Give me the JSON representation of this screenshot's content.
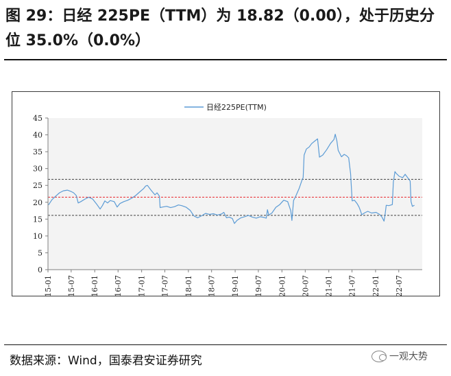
{
  "figure": {
    "title": "图 29：日经 225PE（TTM）为 18.82（0.00），处于历史分位 35.0%（0.0%）",
    "source": "数据来源：Wind，国泰君安证券研究",
    "watermark": "一观大势"
  },
  "colors": {
    "series": "#5b9bd5",
    "mean_line": "#e8242a",
    "band_line": "#404040"
  },
  "chart_data": {
    "type": "line",
    "title": "",
    "xlabel": "",
    "ylabel": "",
    "ylim": [
      0,
      45
    ],
    "yticks": [
      0,
      5,
      10,
      15,
      20,
      25,
      30,
      35,
      40,
      45
    ],
    "xlim": [
      "2015-01",
      "2022-12"
    ],
    "xticks": [
      "15-01",
      "15-07",
      "16-01",
      "16-07",
      "17-01",
      "17-07",
      "18-01",
      "18-07",
      "19-01",
      "19-07",
      "20-01",
      "20-07",
      "21-01",
      "21-07",
      "22-01",
      "22-07"
    ],
    "grid": false,
    "legend": {
      "position": "top-center",
      "entries": [
        "日经225PE(TTM)"
      ]
    },
    "reference_lines": [
      {
        "y": 26.8,
        "style": "dashed",
        "color": "#404040"
      },
      {
        "y": 21.5,
        "style": "dashed",
        "color": "#e8242a"
      },
      {
        "y": 16.1,
        "style": "dashed",
        "color": "#404040"
      }
    ],
    "series": [
      {
        "name": "日经225PE(TTM)",
        "points": [
          [
            "2015-01-05",
            19.2
          ],
          [
            "2015-02-02",
            20.8
          ],
          [
            "2015-03-02",
            21.8
          ],
          [
            "2015-04-01",
            22.8
          ],
          [
            "2015-05-01",
            23.4
          ],
          [
            "2015-06-01",
            23.6
          ],
          [
            "2015-07-01",
            23.2
          ],
          [
            "2015-07-20",
            22.8
          ],
          [
            "2015-08-10",
            22.0
          ],
          [
            "2015-08-25",
            19.8
          ],
          [
            "2015-09-15",
            20.2
          ],
          [
            "2015-10-15",
            20.9
          ],
          [
            "2015-11-15",
            21.5
          ],
          [
            "2015-12-15",
            21.0
          ],
          [
            "2016-01-15",
            19.5
          ],
          [
            "2016-02-12",
            18.0
          ],
          [
            "2016-03-01",
            19.0
          ],
          [
            "2016-03-20",
            20.4
          ],
          [
            "2016-04-10",
            19.8
          ],
          [
            "2016-05-01",
            20.5
          ],
          [
            "2016-06-01",
            20.2
          ],
          [
            "2016-06-24",
            18.6
          ],
          [
            "2016-07-15",
            19.6
          ],
          [
            "2016-08-15",
            20.2
          ],
          [
            "2016-09-15",
            20.6
          ],
          [
            "2016-10-15",
            21.2
          ],
          [
            "2016-11-15",
            22.0
          ],
          [
            "2016-12-15",
            23.0
          ],
          [
            "2017-01-15",
            24.0
          ],
          [
            "2017-02-01",
            24.8
          ],
          [
            "2017-02-15",
            25.0
          ],
          [
            "2017-03-15",
            23.6
          ],
          [
            "2017-04-15",
            22.2
          ],
          [
            "2017-05-01",
            22.8
          ],
          [
            "2017-05-20",
            21.8
          ],
          [
            "2017-05-25",
            18.4
          ],
          [
            "2017-06-15",
            18.6
          ],
          [
            "2017-07-15",
            18.8
          ],
          [
            "2017-08-15",
            18.4
          ],
          [
            "2017-09-15",
            18.7
          ],
          [
            "2017-10-15",
            19.2
          ],
          [
            "2017-11-10",
            19.0
          ],
          [
            "2017-12-15",
            18.5
          ],
          [
            "2018-01-15",
            17.6
          ],
          [
            "2018-02-05",
            16.4
          ],
          [
            "2018-02-15",
            15.9
          ],
          [
            "2018-03-15",
            15.4
          ],
          [
            "2018-04-15",
            16.0
          ],
          [
            "2018-05-15",
            16.7
          ],
          [
            "2018-06-15",
            16.4
          ],
          [
            "2018-07-15",
            16.6
          ],
          [
            "2018-08-15",
            16.2
          ],
          [
            "2018-09-15",
            16.5
          ],
          [
            "2018-10-05",
            17.0
          ],
          [
            "2018-10-25",
            15.4
          ],
          [
            "2018-11-15",
            15.6
          ],
          [
            "2018-12-10",
            15.2
          ],
          [
            "2018-12-26",
            13.7
          ],
          [
            "2019-01-15",
            14.6
          ],
          [
            "2019-02-15",
            15.4
          ],
          [
            "2019-03-15",
            15.7
          ],
          [
            "2019-04-15",
            16.1
          ],
          [
            "2019-05-15",
            15.6
          ],
          [
            "2019-06-15",
            15.3
          ],
          [
            "2019-07-15",
            15.7
          ],
          [
            "2019-08-15",
            15.5
          ],
          [
            "2019-09-01",
            15.3
          ],
          [
            "2019-09-10",
            17.8
          ],
          [
            "2019-09-20",
            16.2
          ],
          [
            "2019-10-15",
            16.8
          ],
          [
            "2019-11-15",
            18.5
          ],
          [
            "2019-12-15",
            19.3
          ],
          [
            "2020-01-15",
            20.6
          ],
          [
            "2020-02-15",
            20.2
          ],
          [
            "2020-03-10",
            17.5
          ],
          [
            "2020-03-19",
            14.6
          ],
          [
            "2020-04-01",
            20.5
          ],
          [
            "2020-04-20",
            22.0
          ],
          [
            "2020-05-15",
            24.2
          ],
          [
            "2020-06-08",
            26.8
          ],
          [
            "2020-06-15",
            27.3
          ],
          [
            "2020-06-22",
            34.0
          ],
          [
            "2020-07-10",
            35.8
          ],
          [
            "2020-08-01",
            36.4
          ],
          [
            "2020-08-20",
            37.4
          ],
          [
            "2020-09-15",
            38.2
          ],
          [
            "2020-10-05",
            38.8
          ],
          [
            "2020-10-20",
            33.4
          ],
          [
            "2020-11-15",
            34.0
          ],
          [
            "2020-12-15",
            35.6
          ],
          [
            "2021-01-15",
            37.5
          ],
          [
            "2021-02-10",
            38.6
          ],
          [
            "2021-02-20",
            40.2
          ],
          [
            "2021-03-05",
            38.2
          ],
          [
            "2021-03-15",
            35.4
          ],
          [
            "2021-04-10",
            33.5
          ],
          [
            "2021-05-01",
            34.2
          ],
          [
            "2021-05-20",
            33.8
          ],
          [
            "2021-06-05",
            33.2
          ],
          [
            "2021-06-20",
            28.5
          ],
          [
            "2021-07-02",
            20.4
          ],
          [
            "2021-07-20",
            20.6
          ],
          [
            "2021-08-10",
            19.6
          ],
          [
            "2021-08-25",
            18.6
          ],
          [
            "2021-09-05",
            17.5
          ],
          [
            "2021-09-15",
            16.3
          ],
          [
            "2021-10-10",
            16.9
          ],
          [
            "2021-11-01",
            17.3
          ],
          [
            "2021-12-01",
            16.8
          ],
          [
            "2022-01-05",
            17.0
          ],
          [
            "2022-02-01",
            16.4
          ],
          [
            "2022-02-20",
            15.6
          ],
          [
            "2022-03-08",
            14.4
          ],
          [
            "2022-03-15",
            16.0
          ],
          [
            "2022-03-25",
            19.1
          ],
          [
            "2022-04-15",
            19.0
          ],
          [
            "2022-05-12",
            19.3
          ],
          [
            "2022-05-20",
            26.0
          ],
          [
            "2022-06-01",
            29.1
          ],
          [
            "2022-06-10",
            28.6
          ],
          [
            "2022-07-05",
            27.7
          ],
          [
            "2022-08-01",
            27.3
          ],
          [
            "2022-08-20",
            28.3
          ],
          [
            "2022-09-10",
            27.2
          ],
          [
            "2022-09-28",
            26.3
          ],
          [
            "2022-10-05",
            20.2
          ],
          [
            "2022-10-15",
            18.8
          ],
          [
            "2022-10-31",
            19.1
          ]
        ]
      }
    ]
  }
}
